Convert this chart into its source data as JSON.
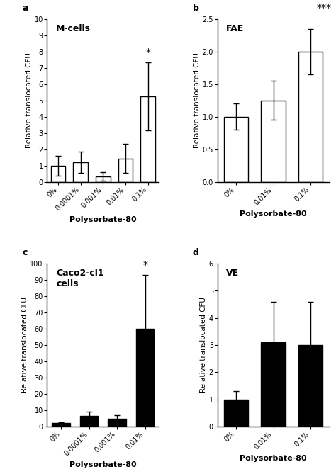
{
  "panel_a": {
    "title": "M-cells",
    "label": "a",
    "categories": [
      "0%",
      "0.0001%",
      "0.001%",
      "0.01%",
      "0.1%"
    ],
    "values": [
      1.0,
      1.2,
      0.35,
      1.45,
      5.25
    ],
    "errors": [
      0.6,
      0.65,
      0.25,
      0.9,
      2.1
    ],
    "ylim": [
      0,
      10
    ],
    "yticks": [
      0,
      1,
      2,
      3,
      4,
      5,
      6,
      7,
      8,
      9,
      10
    ],
    "ylabel": "Relative translocated CFU",
    "xlabel": "Polysorbate-80",
    "bar_color": "white",
    "bar_edgecolor": "black",
    "sig_label": "*",
    "sig_bar_index": 4,
    "sig_outside": false
  },
  "panel_b": {
    "title": "FAE",
    "label": "b",
    "categories": [
      "0%",
      "0.01%",
      "0.1%"
    ],
    "values": [
      1.0,
      1.25,
      2.0
    ],
    "errors": [
      0.2,
      0.3,
      0.35
    ],
    "ylim": [
      0.0,
      2.5
    ],
    "yticks": [
      0.0,
      0.5,
      1.0,
      1.5,
      2.0,
      2.5
    ],
    "ylabel": "Relative translocated CFU",
    "xlabel": "Polysorbate-80",
    "bar_color": "white",
    "bar_edgecolor": "black",
    "sig_label": "***",
    "sig_bar_index": 2,
    "sig_outside": true
  },
  "panel_c": {
    "title": "Caco2-cl1\ncells",
    "label": "c",
    "categories": [
      "0%",
      "0.0001%",
      "0.001%",
      "0.01%"
    ],
    "values": [
      2.0,
      6.5,
      5.0,
      60.0
    ],
    "errors": [
      0.8,
      2.5,
      2.0,
      33.0
    ],
    "ylim": [
      0,
      100
    ],
    "yticks": [
      0,
      10,
      20,
      30,
      40,
      50,
      60,
      70,
      80,
      90,
      100
    ],
    "ylabel": "Relative translocated CFU",
    "xlabel": "Polysorbate-80",
    "bar_color": "black",
    "bar_edgecolor": "black",
    "sig_label": "*",
    "sig_bar_index": 3,
    "sig_outside": false
  },
  "panel_d": {
    "title": "VE",
    "label": "d",
    "categories": [
      "0%",
      "0.01%",
      "0.1%"
    ],
    "values": [
      1.0,
      3.1,
      3.0
    ],
    "errors": [
      0.3,
      1.5,
      1.6
    ],
    "ylim": [
      0.0,
      6.0
    ],
    "yticks": [
      0.0,
      1.0,
      2.0,
      3.0,
      4.0,
      5.0,
      6.0
    ],
    "ylabel": "Relative translocated CFU",
    "xlabel": "Polysorbate-80",
    "bar_color": "black",
    "bar_edgecolor": "black",
    "sig_label": null,
    "sig_bar_index": null,
    "sig_outside": false
  }
}
